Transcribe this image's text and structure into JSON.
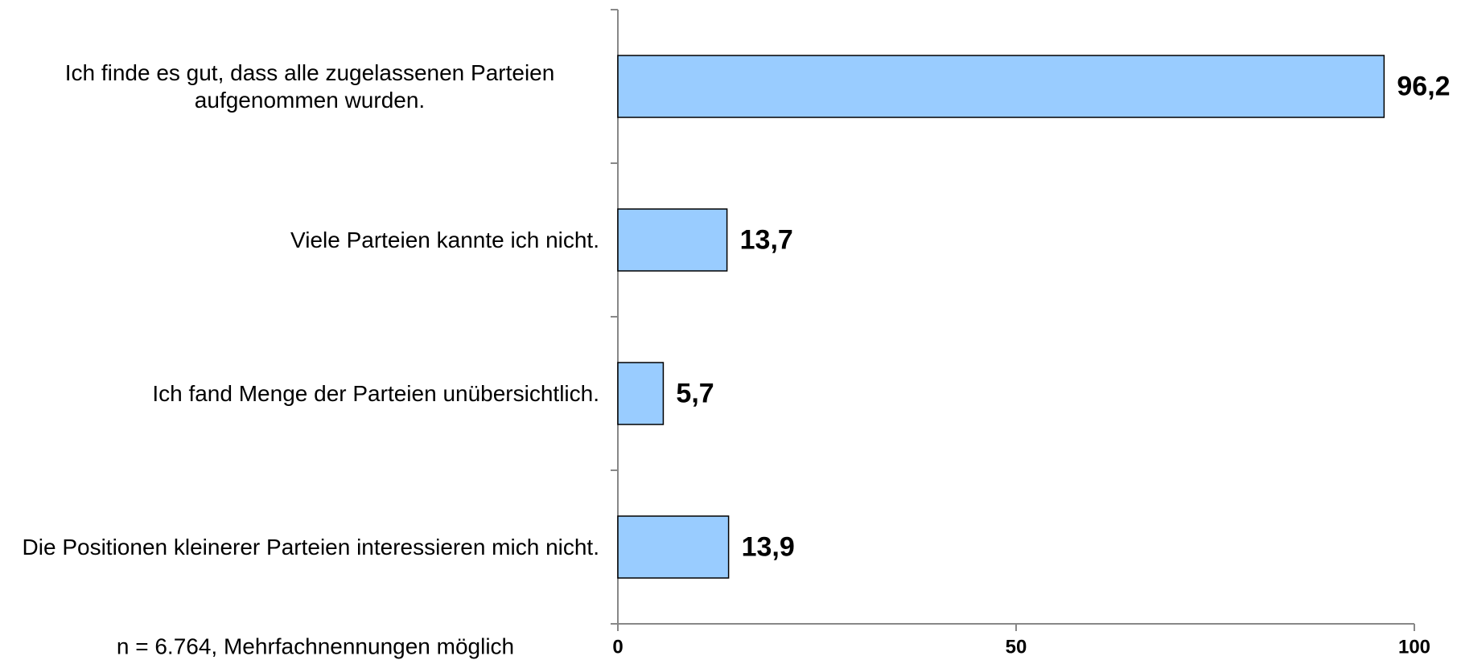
{
  "chart_data": {
    "type": "bar",
    "orientation": "horizontal",
    "categories": [
      "Ich finde es gut, dass alle zugelassenen Parteien aufgenommen wurden.",
      "Viele Parteien kannte ich nicht.",
      "Ich fand Menge der Parteien unübersichtlich.",
      "Die Positionen kleinerer Parteien interessieren mich nicht."
    ],
    "values": [
      96.2,
      13.7,
      5.7,
      13.9
    ],
    "value_labels": [
      "96,2",
      "13,7",
      "5,7",
      "13,9"
    ],
    "color": "#99ccff",
    "xlim": [
      0,
      100
    ],
    "xticks": [
      0,
      50,
      100
    ],
    "grid": false,
    "note": "n = 6.764, Mehrfachnennungen möglich"
  }
}
